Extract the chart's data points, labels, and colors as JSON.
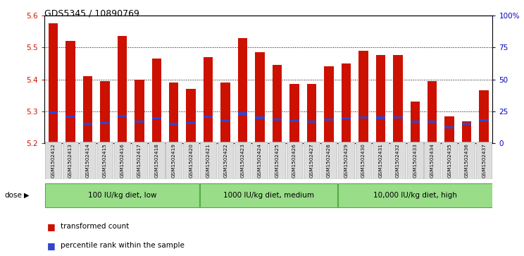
{
  "title": "GDS5345 / 10890769",
  "samples": [
    "GSM1502412",
    "GSM1502413",
    "GSM1502414",
    "GSM1502415",
    "GSM1502416",
    "GSM1502417",
    "GSM1502418",
    "GSM1502419",
    "GSM1502420",
    "GSM1502421",
    "GSM1502422",
    "GSM1502423",
    "GSM1502424",
    "GSM1502425",
    "GSM1502426",
    "GSM1502427",
    "GSM1502428",
    "GSM1502429",
    "GSM1502430",
    "GSM1502431",
    "GSM1502432",
    "GSM1502433",
    "GSM1502434",
    "GSM1502435",
    "GSM1502436",
    "GSM1502437"
  ],
  "bar_heights": [
    5.575,
    5.52,
    5.41,
    5.395,
    5.535,
    5.4,
    5.465,
    5.39,
    5.37,
    5.47,
    5.39,
    5.53,
    5.485,
    5.445,
    5.385,
    5.385,
    5.44,
    5.45,
    5.49,
    5.475,
    5.475,
    5.33,
    5.395,
    5.285,
    5.27,
    5.365
  ],
  "blue_positions": [
    5.296,
    5.283,
    5.262,
    5.263,
    5.286,
    5.267,
    5.278,
    5.262,
    5.263,
    5.284,
    5.27,
    5.293,
    5.28,
    5.275,
    5.27,
    5.267,
    5.275,
    5.278,
    5.281,
    5.28,
    5.281,
    5.268,
    5.268,
    5.25,
    5.262,
    5.272
  ],
  "ymin": 5.2,
  "ymax": 5.6,
  "yticks": [
    5.2,
    5.3,
    5.4,
    5.5,
    5.6
  ],
  "right_yticks": [
    0,
    25,
    50,
    75,
    100
  ],
  "right_ytick_labels": [
    "0",
    "25",
    "50",
    "75",
    "100%"
  ],
  "bar_color": "#CC1100",
  "blue_color": "#3344CC",
  "groups": [
    {
      "label": "100 IU/kg diet, low",
      "start": 0,
      "end": 9
    },
    {
      "label": "1000 IU/kg diet, medium",
      "start": 9,
      "end": 17
    },
    {
      "label": "10,000 IU/kg diet, high",
      "start": 17,
      "end": 26
    }
  ],
  "group_fill": "#99DD88",
  "group_edge": "#55AA44",
  "dose_label": "dose",
  "legend_items": [
    {
      "label": "transformed count",
      "color": "#CC1100"
    },
    {
      "label": "percentile rank within the sample",
      "color": "#3344CC"
    }
  ],
  "axis_label_color_left": "#CC1100",
  "axis_label_color_right": "#0000BB",
  "bar_width": 0.55
}
